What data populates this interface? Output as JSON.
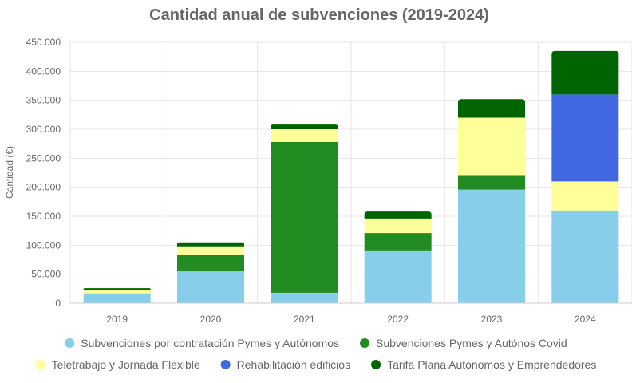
{
  "chart_data": {
    "type": "bar",
    "stacked": true,
    "title": "Cantidad anual de subvenciones (2019-2024)",
    "xlabel": "",
    "ylabel": "Cantidad (€)",
    "ylim": [
      0,
      450000
    ],
    "y_ticks": [
      0,
      50000,
      100000,
      150000,
      200000,
      250000,
      300000,
      350000,
      400000,
      450000
    ],
    "y_tick_labels": [
      "0",
      "50.000",
      "100.000",
      "150.000",
      "200.000",
      "250.000",
      "300.000",
      "350.000",
      "400.000",
      "450.000"
    ],
    "grid": true,
    "legend_position": "bottom",
    "categories": [
      "2019",
      "2020",
      "2021",
      "2022",
      "2023",
      "2024"
    ],
    "series": [
      {
        "name": "Subvenciones por contratación Pymes y Autónomos",
        "color": "#87CEEB",
        "values": [
          17000,
          55000,
          18000,
          91000,
          196000,
          160000
        ]
      },
      {
        "name": "Subvenciones Pymes y Autónos Covid",
        "color": "#228B22",
        "values": [
          0,
          28000,
          260000,
          30000,
          25000,
          0
        ]
      },
      {
        "name": "Teletrabajo y Jornada Flexible",
        "color": "#FFFF99",
        "values": [
          5000,
          15000,
          22000,
          25000,
          99000,
          50000
        ]
      },
      {
        "name": "Rehabilitación edificios",
        "color": "#4169E1",
        "values": [
          0,
          0,
          0,
          0,
          0,
          150000
        ]
      },
      {
        "name": "Tarifa Plana Autónomos y Emprendedores",
        "color": "#006400",
        "values": [
          4000,
          7000,
          8000,
          12000,
          32000,
          75000
        ]
      }
    ]
  }
}
